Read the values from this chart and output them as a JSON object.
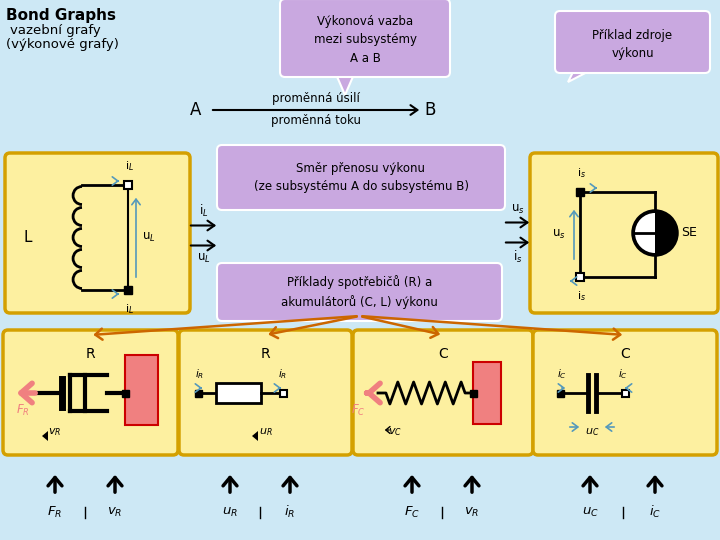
{
  "bg_color": "#cde8f5",
  "title_line1": "Bond Graphs",
  "title_line2": "vazební grafy",
  "title_line3": "(výkonové grafy)",
  "bubble1_text": "Výkonová vazba\nmezi subsystémy\nA a B",
  "bubble1_color": "#c9a8e0",
  "bubble2_text": "Příklad zdroje\nvýkonu",
  "bubble2_color": "#c9a8e0",
  "purple_box1_text": "Směr přenosu výkonu\n(ze subsystému A do subsystému B)",
  "purple_box1_color": "#c9a8e0",
  "purple_box2_text": "Příklady spotřebičů (R) a\nakumulátorů (C, L) výkonu",
  "purple_box2_color": "#c9a8e0",
  "yellow_color": "#fdf0a0",
  "yellow_border": "#d4a000",
  "pink_color": "#f08080",
  "black": "#000000",
  "white": "#ffffff",
  "bond_arrow_color": "#5599bb",
  "orange_arrow_color": "#cc6600"
}
